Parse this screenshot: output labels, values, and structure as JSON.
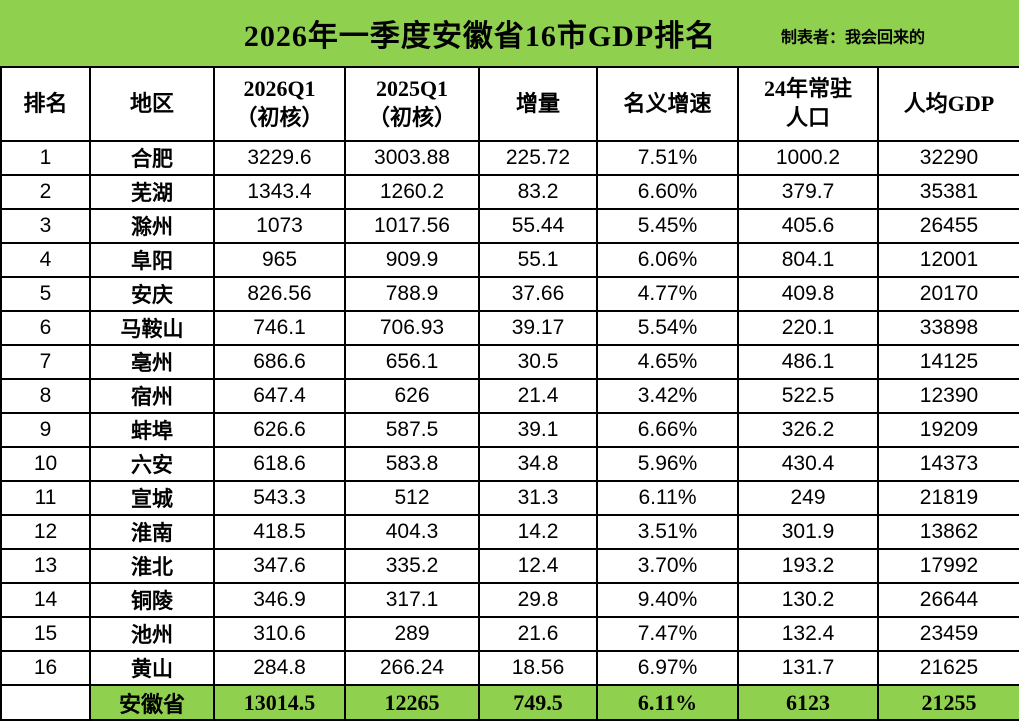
{
  "colors": {
    "banner_green": "#8FD14F",
    "border_black": "#000000",
    "cell_white": "#FFFFFF",
    "text_black": "#000000"
  },
  "chart_data": {
    "type": "table",
    "title": "2026年一季度安徽省16市GDP排名",
    "credit": "制表者：我会回来的",
    "columns": [
      "排名",
      "地区",
      "2026Q1\n（初核）",
      "2025Q1\n（初核）",
      "增量",
      "名义增速",
      "24年常驻\n人口",
      "人均GDP"
    ],
    "rows": [
      [
        "1",
        "合肥",
        "3229.6",
        "3003.88",
        "225.72",
        "7.51%",
        "1000.2",
        "32290"
      ],
      [
        "2",
        "芜湖",
        "1343.4",
        "1260.2",
        "83.2",
        "6.60%",
        "379.7",
        "35381"
      ],
      [
        "3",
        "滁州",
        "1073",
        "1017.56",
        "55.44",
        "5.45%",
        "405.6",
        "26455"
      ],
      [
        "4",
        "阜阳",
        "965",
        "909.9",
        "55.1",
        "6.06%",
        "804.1",
        "12001"
      ],
      [
        "5",
        "安庆",
        "826.56",
        "788.9",
        "37.66",
        "4.77%",
        "409.8",
        "20170"
      ],
      [
        "6",
        "马鞍山",
        "746.1",
        "706.93",
        "39.17",
        "5.54%",
        "220.1",
        "33898"
      ],
      [
        "7",
        "亳州",
        "686.6",
        "656.1",
        "30.5",
        "4.65%",
        "486.1",
        "14125"
      ],
      [
        "8",
        "宿州",
        "647.4",
        "626",
        "21.4",
        "3.42%",
        "522.5",
        "12390"
      ],
      [
        "9",
        "蚌埠",
        "626.6",
        "587.5",
        "39.1",
        "6.66%",
        "326.2",
        "19209"
      ],
      [
        "10",
        "六安",
        "618.6",
        "583.8",
        "34.8",
        "5.96%",
        "430.4",
        "14373"
      ],
      [
        "11",
        "宣城",
        "543.3",
        "512",
        "31.3",
        "6.11%",
        "249",
        "21819"
      ],
      [
        "12",
        "淮南",
        "418.5",
        "404.3",
        "14.2",
        "3.51%",
        "301.9",
        "13862"
      ],
      [
        "13",
        "淮北",
        "347.6",
        "335.2",
        "12.4",
        "3.70%",
        "193.2",
        "17992"
      ],
      [
        "14",
        "铜陵",
        "346.9",
        "317.1",
        "29.8",
        "9.40%",
        "130.2",
        "26644"
      ],
      [
        "15",
        "池州",
        "310.6",
        "289",
        "21.6",
        "7.47%",
        "132.4",
        "23459"
      ],
      [
        "16",
        "黄山",
        "284.8",
        "266.24",
        "18.56",
        "6.97%",
        "131.7",
        "21625"
      ]
    ],
    "footer": [
      "",
      "安徽省",
      "13014.5",
      "12265",
      "749.5",
      "6.11%",
      "6123",
      "21255"
    ]
  }
}
